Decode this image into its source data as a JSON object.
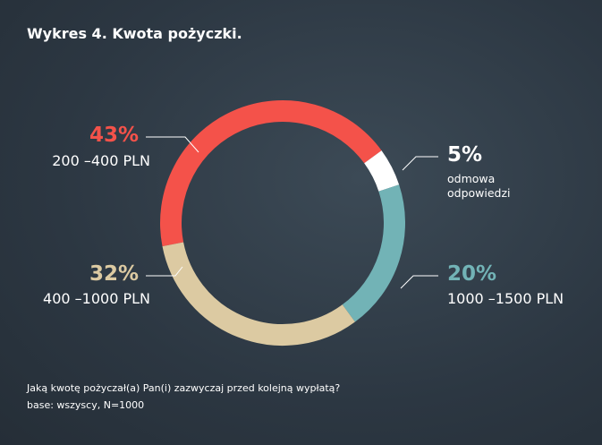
{
  "chart_data": {
    "type": "pie",
    "donut": true,
    "title": "Wykres 4. Kwota pożyczki.",
    "categories": [
      "200 –400 PLN",
      "odmowa odpowiedzi",
      "1000 –1500 PLN",
      "400 –1000 PLN"
    ],
    "values": [
      43,
      5,
      20,
      32
    ],
    "value_labels": [
      "43%",
      "5%",
      "20%",
      "32%"
    ],
    "colors": [
      "#f4524a",
      "#ffffff",
      "#72b3b6",
      "#dccaa2"
    ],
    "label_colors": [
      "#f4524a",
      "#ffffff",
      "#72b3b6",
      "#dccaa2"
    ],
    "footnotes": [
      "Jaką kwotę pożyczał(a) Pan(i) zazwyczaj przed kolejną wypłatą?",
      "base: wszyscy, N=1000"
    ]
  }
}
